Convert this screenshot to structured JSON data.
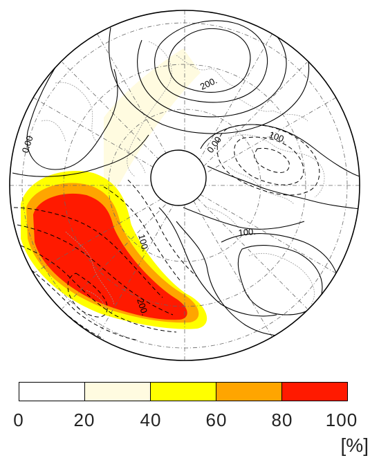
{
  "map": {
    "contour_labels": [
      "200.",
      "0.00",
      "0.00",
      "100.",
      "100.",
      "100.",
      "200."
    ],
    "shading_colors": [
      "#ffffff",
      "#fffbe0",
      "#ffff00",
      "#ffa500",
      "#ff1a00"
    ],
    "line_color": "#000000"
  },
  "colorbar": {
    "ticks": [
      "0",
      "20",
      "40",
      "60",
      "80",
      "100"
    ],
    "unit": "[%]",
    "colors": [
      "#ffffff",
      "#fffbe0",
      "#ffff00",
      "#ffa500",
      "#ff1a00"
    ]
  }
}
